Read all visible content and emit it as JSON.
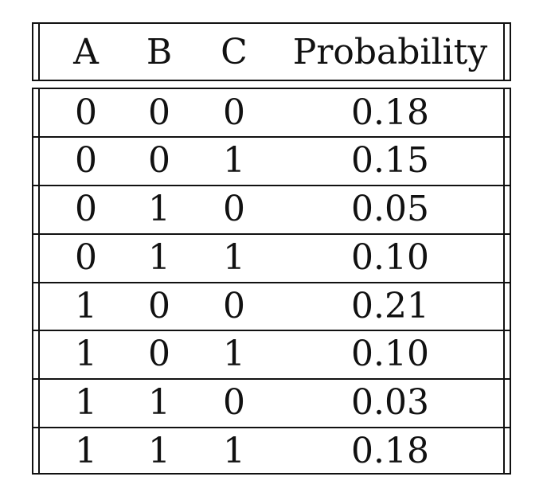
{
  "table": {
    "headers": {
      "a": "A",
      "b": "B",
      "c": "C",
      "probability": "Probability"
    },
    "rows": [
      {
        "a": "0",
        "b": "0",
        "c": "0",
        "p": "0.18"
      },
      {
        "a": "0",
        "b": "0",
        "c": "1",
        "p": "0.15"
      },
      {
        "a": "0",
        "b": "1",
        "c": "0",
        "p": "0.05"
      },
      {
        "a": "0",
        "b": "1",
        "c": "1",
        "p": "0.10"
      },
      {
        "a": "1",
        "b": "0",
        "c": "0",
        "p": "0.21"
      },
      {
        "a": "1",
        "b": "0",
        "c": "1",
        "p": "0.10"
      },
      {
        "a": "1",
        "b": "1",
        "c": "0",
        "p": "0.03"
      },
      {
        "a": "1",
        "b": "1",
        "c": "1",
        "p": "0.18"
      }
    ]
  }
}
